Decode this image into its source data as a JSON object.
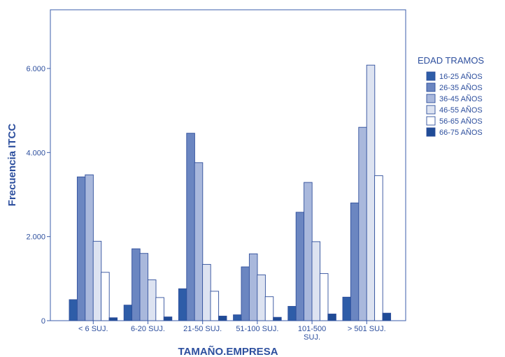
{
  "chart_data": {
    "type": "bar",
    "title": "",
    "xlabel": "TAMAÑO.EMPRESA",
    "ylabel": "Frecuencia ITCC",
    "ylim": [
      0,
      7200
    ],
    "yticks": [
      0,
      2000,
      4000,
      6000
    ],
    "ytick_labels": [
      "0",
      "2.000",
      "4.000",
      "6.000"
    ],
    "grid": false,
    "legend_position": "right",
    "legend_title": "EDAD TRAMOS",
    "categories": [
      "< 6 SUJ.",
      "6-20 SUJ.",
      "21-50 SUJ.",
      "51-100 SUJ.",
      "101-500 SUJ.",
      "> 501 SUJ."
    ],
    "category_lines": [
      [
        "< 6 SUJ."
      ],
      [
        "6-20 SUJ."
      ],
      [
        "21-50 SUJ."
      ],
      [
        "51-100 SUJ."
      ],
      [
        "101-500",
        "SUJ."
      ],
      [
        "> 501 SUJ."
      ]
    ],
    "series": [
      {
        "name": "16-25 AÑOS",
        "color": "#2e5da8",
        "values": [
          500,
          370,
          760,
          140,
          340,
          560
        ]
      },
      {
        "name": "26-35 AÑOS",
        "color": "#6b86c1",
        "values": [
          3420,
          1710,
          4460,
          1280,
          2580,
          2800
        ]
      },
      {
        "name": "36-45 AÑOS",
        "color": "#a9b8dc",
        "values": [
          3470,
          1600,
          3760,
          1590,
          3290,
          4600
        ]
      },
      {
        "name": "46-55 AÑOS",
        "color": "#dde3f1",
        "values": [
          1890,
          970,
          1340,
          1090,
          1880,
          6080
        ]
      },
      {
        "name": "56-65 AÑOS",
        "color": "#ffffff",
        "values": [
          1150,
          550,
          700,
          570,
          1120,
          3450
        ]
      },
      {
        "name": "66-75 AÑOS",
        "color": "#1f4b96",
        "values": [
          70,
          90,
          110,
          80,
          160,
          180
        ]
      }
    ]
  }
}
